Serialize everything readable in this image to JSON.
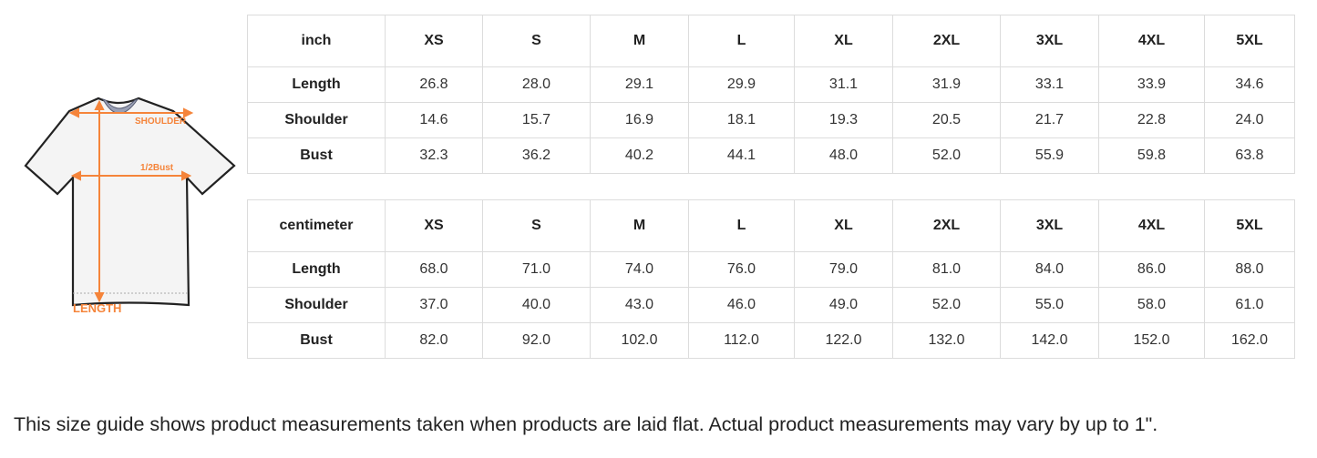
{
  "diagram": {
    "labels": {
      "shoulder": "SHOULDER",
      "bust": "1/2Bust",
      "length": "LENGTH"
    },
    "accent": "#f5843a"
  },
  "sizes": [
    "XS",
    "S",
    "M",
    "L",
    "XL",
    "2XL",
    "3XL",
    "4XL",
    "5XL"
  ],
  "tables": [
    {
      "unit": "inch",
      "rows": [
        {
          "label": "Length",
          "values": [
            "26.8",
            "28.0",
            "29.1",
            "29.9",
            "31.1",
            "31.9",
            "33.1",
            "33.9",
            "34.6"
          ]
        },
        {
          "label": "Shoulder",
          "values": [
            "14.6",
            "15.7",
            "16.9",
            "18.1",
            "19.3",
            "20.5",
            "21.7",
            "22.8",
            "24.0"
          ]
        },
        {
          "label": "Bust",
          "values": [
            "32.3",
            "36.2",
            "40.2",
            "44.1",
            "48.0",
            "52.0",
            "55.9",
            "59.8",
            "63.8"
          ]
        }
      ]
    },
    {
      "unit": "centimeter",
      "rows": [
        {
          "label": "Length",
          "values": [
            "68.0",
            "71.0",
            "74.0",
            "76.0",
            "79.0",
            "81.0",
            "84.0",
            "86.0",
            "88.0"
          ]
        },
        {
          "label": "Shoulder",
          "values": [
            "37.0",
            "40.0",
            "43.0",
            "46.0",
            "49.0",
            "52.0",
            "55.0",
            "58.0",
            "61.0"
          ]
        },
        {
          "label": "Bust",
          "values": [
            "82.0",
            "92.0",
            "102.0",
            "112.0",
            "122.0",
            "132.0",
            "142.0",
            "152.0",
            "162.0"
          ]
        }
      ]
    }
  ],
  "note": "This size guide shows product measurements taken when products are laid flat. Actual product measurements may vary by up to 1\"."
}
